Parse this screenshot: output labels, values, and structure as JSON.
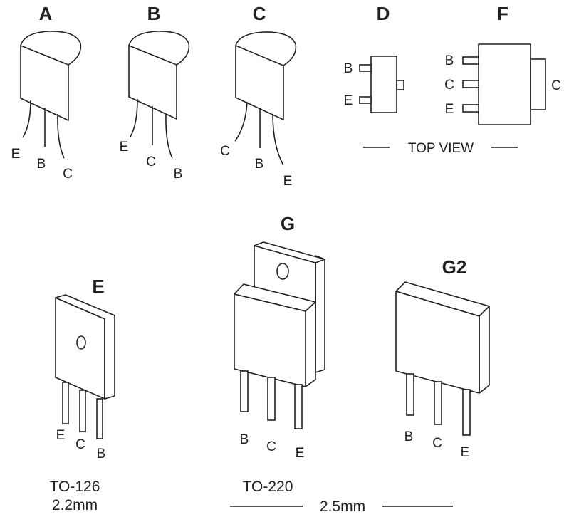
{
  "packages": {
    "A": {
      "title": "A",
      "pins": [
        "E",
        "B",
        "C"
      ]
    },
    "B": {
      "title": "B",
      "pins": [
        "E",
        "C",
        "B"
      ]
    },
    "C": {
      "title": "C",
      "pins": [
        "C",
        "B",
        "E"
      ]
    },
    "D": {
      "title": "D",
      "pins": [
        "B",
        "E"
      ]
    },
    "F": {
      "title": "F",
      "pins": [
        "B",
        "C",
        "E"
      ],
      "tab_pin": "C"
    },
    "E": {
      "title": "E",
      "pins": [
        "E",
        "C",
        "B"
      ],
      "caption_name": "TO-126",
      "caption_size": "2.2mm"
    },
    "G": {
      "title": "G",
      "pins": [
        "B",
        "C",
        "E"
      ],
      "caption_name": "TO-220"
    },
    "G2": {
      "title": "G2",
      "pins": [
        "B",
        "C",
        "E"
      ]
    }
  },
  "top_view_label": "TOP VIEW",
  "to220_size": "2.5mm",
  "colors": {
    "ink": "#231f20",
    "background": "#ffffff"
  }
}
